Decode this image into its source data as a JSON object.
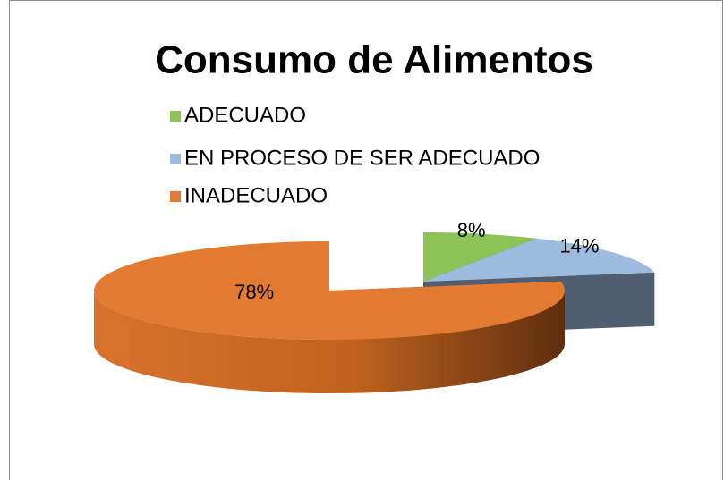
{
  "chart_data": {
    "type": "pie3d",
    "title": "Consumo de Alimentos",
    "categories": [
      "ADECUADO",
      "EN PROCESO DE SER ADECUADO",
      "INADECUADO"
    ],
    "values": [
      8,
      14,
      78
    ],
    "value_labels": [
      "8%",
      "14%",
      "78%"
    ],
    "colors": [
      "#8dc255",
      "#9dbbdf",
      "#e27a32"
    ],
    "legend": "top-left"
  }
}
